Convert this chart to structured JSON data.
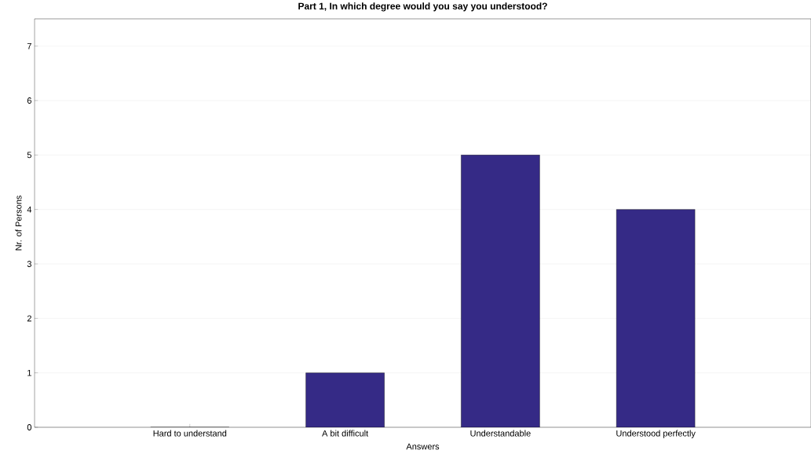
{
  "chart_data": {
    "type": "bar",
    "title": "Part 1, In which degree would you say you understood?",
    "xlabel": "Answers",
    "ylabel": "Nr. of Persons",
    "categories": [
      "Hard to understand",
      "A bit difficult",
      "Understandable",
      "Understood perfectly"
    ],
    "values": [
      0,
      1,
      5,
      4
    ],
    "color": "#352a86",
    "ylim": [
      0,
      7.5
    ],
    "yticks": [
      0,
      1,
      2,
      3,
      4,
      5,
      6,
      7
    ],
    "grid": "y"
  }
}
